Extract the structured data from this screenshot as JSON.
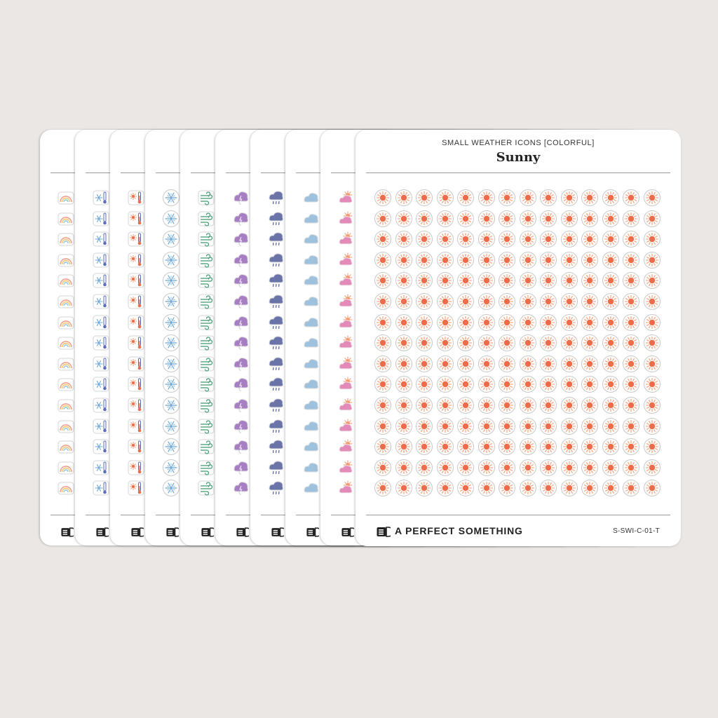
{
  "front_sheet": {
    "series_title": "SMALL WEATHER ICONS [COLORFUL]",
    "name": "Sunny",
    "brand": "A PERFECT SOMETHING",
    "sku": "S-SWI-C-01-T",
    "rows": 15,
    "columns": 14,
    "icon": "sun-icon"
  },
  "back_sheets": [
    {
      "icon": "rainbow-icon"
    },
    {
      "icon": "snow-thermometer-icon"
    },
    {
      "icon": "hot-thermometer-icon"
    },
    {
      "icon": "snowflake-icon"
    },
    {
      "icon": "wind-icon"
    },
    {
      "icon": "storm-cloud-icon"
    },
    {
      "icon": "rain-cloud-icon"
    },
    {
      "icon": "cloud-icon"
    },
    {
      "icon": "partly-cloudy-icon"
    }
  ],
  "colors": {
    "background": "#ebe7e4",
    "sun": "#ef6c4b",
    "sun_rays": "#f29a6e",
    "snow": "#6aa6d8",
    "thermo_cold": "#5b6fb8",
    "rainbow_red": "#f2998a",
    "rainbow_yellow": "#f5c66a",
    "rainbow_blue": "#8fc3e0",
    "wind": "#3d9a6e",
    "storm": "#a77ec4",
    "rain_cloud": "#6b74a8",
    "cloud": "#9ec2dd",
    "partly_cloud": "#e48ab8"
  }
}
